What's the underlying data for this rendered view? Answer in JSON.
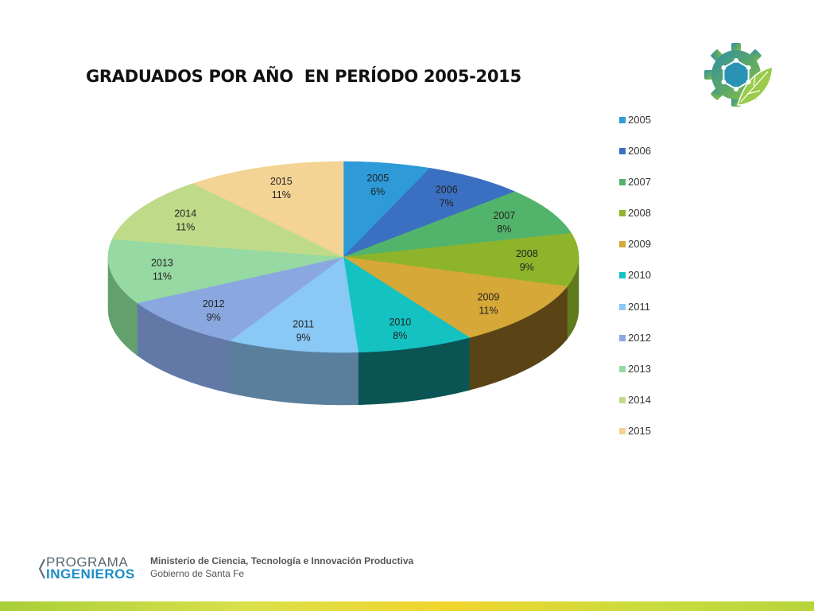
{
  "slide": {
    "title": "GRADUADOS POR AÑO  EN PERÍODO 2005-2015"
  },
  "chart_data": {
    "type": "pie",
    "style": "3d",
    "title": "GRADUADOS POR AÑO  EN PERÍODO 2005-2015",
    "legend_position": "right",
    "start_angle_deg": 90,
    "direction": "clockwise",
    "slices": [
      {
        "label": "2005",
        "percent_label": "6%",
        "value": 6,
        "color": "#2e9ad8",
        "side_color": "#1f6a96"
      },
      {
        "label": "2006",
        "percent_label": "7%",
        "value": 7,
        "color": "#3b6fc1",
        "side_color": "#294d86"
      },
      {
        "label": "2007",
        "percent_label": "8%",
        "value": 8,
        "color": "#52b46b",
        "side_color": "#397d4a"
      },
      {
        "label": "2008",
        "percent_label": "9%",
        "value": 9,
        "color": "#8db42b",
        "side_color": "#5f7a1c"
      },
      {
        "label": "2009",
        "percent_label": "11%",
        "value": 11,
        "color": "#d6a838",
        "side_color": "#5a4416"
      },
      {
        "label": "2010",
        "percent_label": "8%",
        "value": 8,
        "color": "#14c2c2",
        "side_color": "#0b5454"
      },
      {
        "label": "2011",
        "percent_label": "9%",
        "value": 9,
        "color": "#8ac8f5",
        "side_color": "#5a7f9c"
      },
      {
        "label": "2012",
        "percent_label": "9%",
        "value": 9,
        "color": "#8aa8df",
        "side_color": "#6279a8"
      },
      {
        "label": "2013",
        "percent_label": "11%",
        "value": 11,
        "color": "#96d9a2",
        "side_color": "#63a06e"
      },
      {
        "label": "2014",
        "percent_label": "11%",
        "value": 11,
        "color": "#bfdb8a",
        "side_color": "#8ea463"
      },
      {
        "label": "2015",
        "percent_label": "11%",
        "value": 11,
        "color": "#f3d494",
        "side_color": "#b79e6a"
      }
    ]
  },
  "footer": {
    "program_line1": "PROGRAMA",
    "program_line2": "INGENIEROS",
    "ministry": "Ministerio de Ciencia, Tecnología e Innovación Productiva",
    "government": "Gobierno de Santa Fe",
    "colors": {
      "program_gray": "#5a6770",
      "program_blue": "#1c8dc4"
    }
  },
  "logo": {
    "icon": "gear-leaf-emblem-icon"
  }
}
